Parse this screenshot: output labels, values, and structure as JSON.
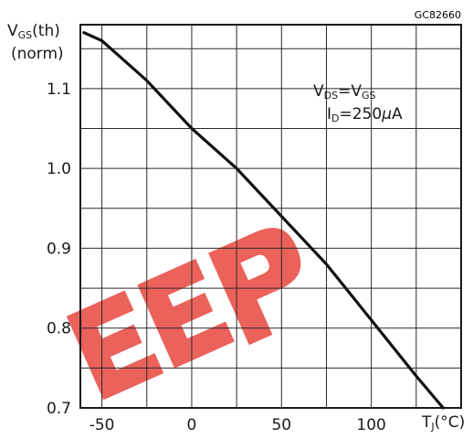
{
  "chart_data": {
    "type": "line",
    "figure_code": "GC82660",
    "ylabel": {
      "main": "V",
      "sub": "GS",
      "tail": "(th)",
      "line2": "(norm)"
    },
    "xlabel": {
      "main": "T",
      "sub": "J",
      "tail": "(°C)"
    },
    "xlim": [
      -62,
      150
    ],
    "ylim": [
      0.7,
      1.18
    ],
    "x_ticks": [
      -50,
      0,
      50,
      100
    ],
    "x_tick_labels": [
      "-50",
      "0",
      "50",
      "100"
    ],
    "y_ticks": [
      0.7,
      0.8,
      0.9,
      1.0,
      1.1
    ],
    "y_tick_labels": [
      "0.7",
      "0.8",
      "0.9",
      "1.0",
      "1.1"
    ],
    "grid": true,
    "annotation": {
      "line1": {
        "a": "V",
        "a_sub": "DS",
        "eq": "=V",
        "b_sub": "GS"
      },
      "line2": {
        "a": "I",
        "a_sub": "D",
        "eq": "=250",
        "mu": "μ",
        "unit": "A"
      }
    },
    "watermark": "EEP",
    "series": [
      {
        "x": [
          -60,
          -50,
          -25,
          0,
          25,
          50,
          75,
          100,
          125,
          140
        ],
        "y": [
          1.17,
          1.16,
          1.11,
          1.05,
          1.0,
          0.94,
          0.88,
          0.81,
          0.74,
          0.7
        ]
      }
    ],
    "colors": {
      "line": "#111111",
      "grid": "#2a2a2a",
      "watermark": "#e8473f"
    }
  }
}
